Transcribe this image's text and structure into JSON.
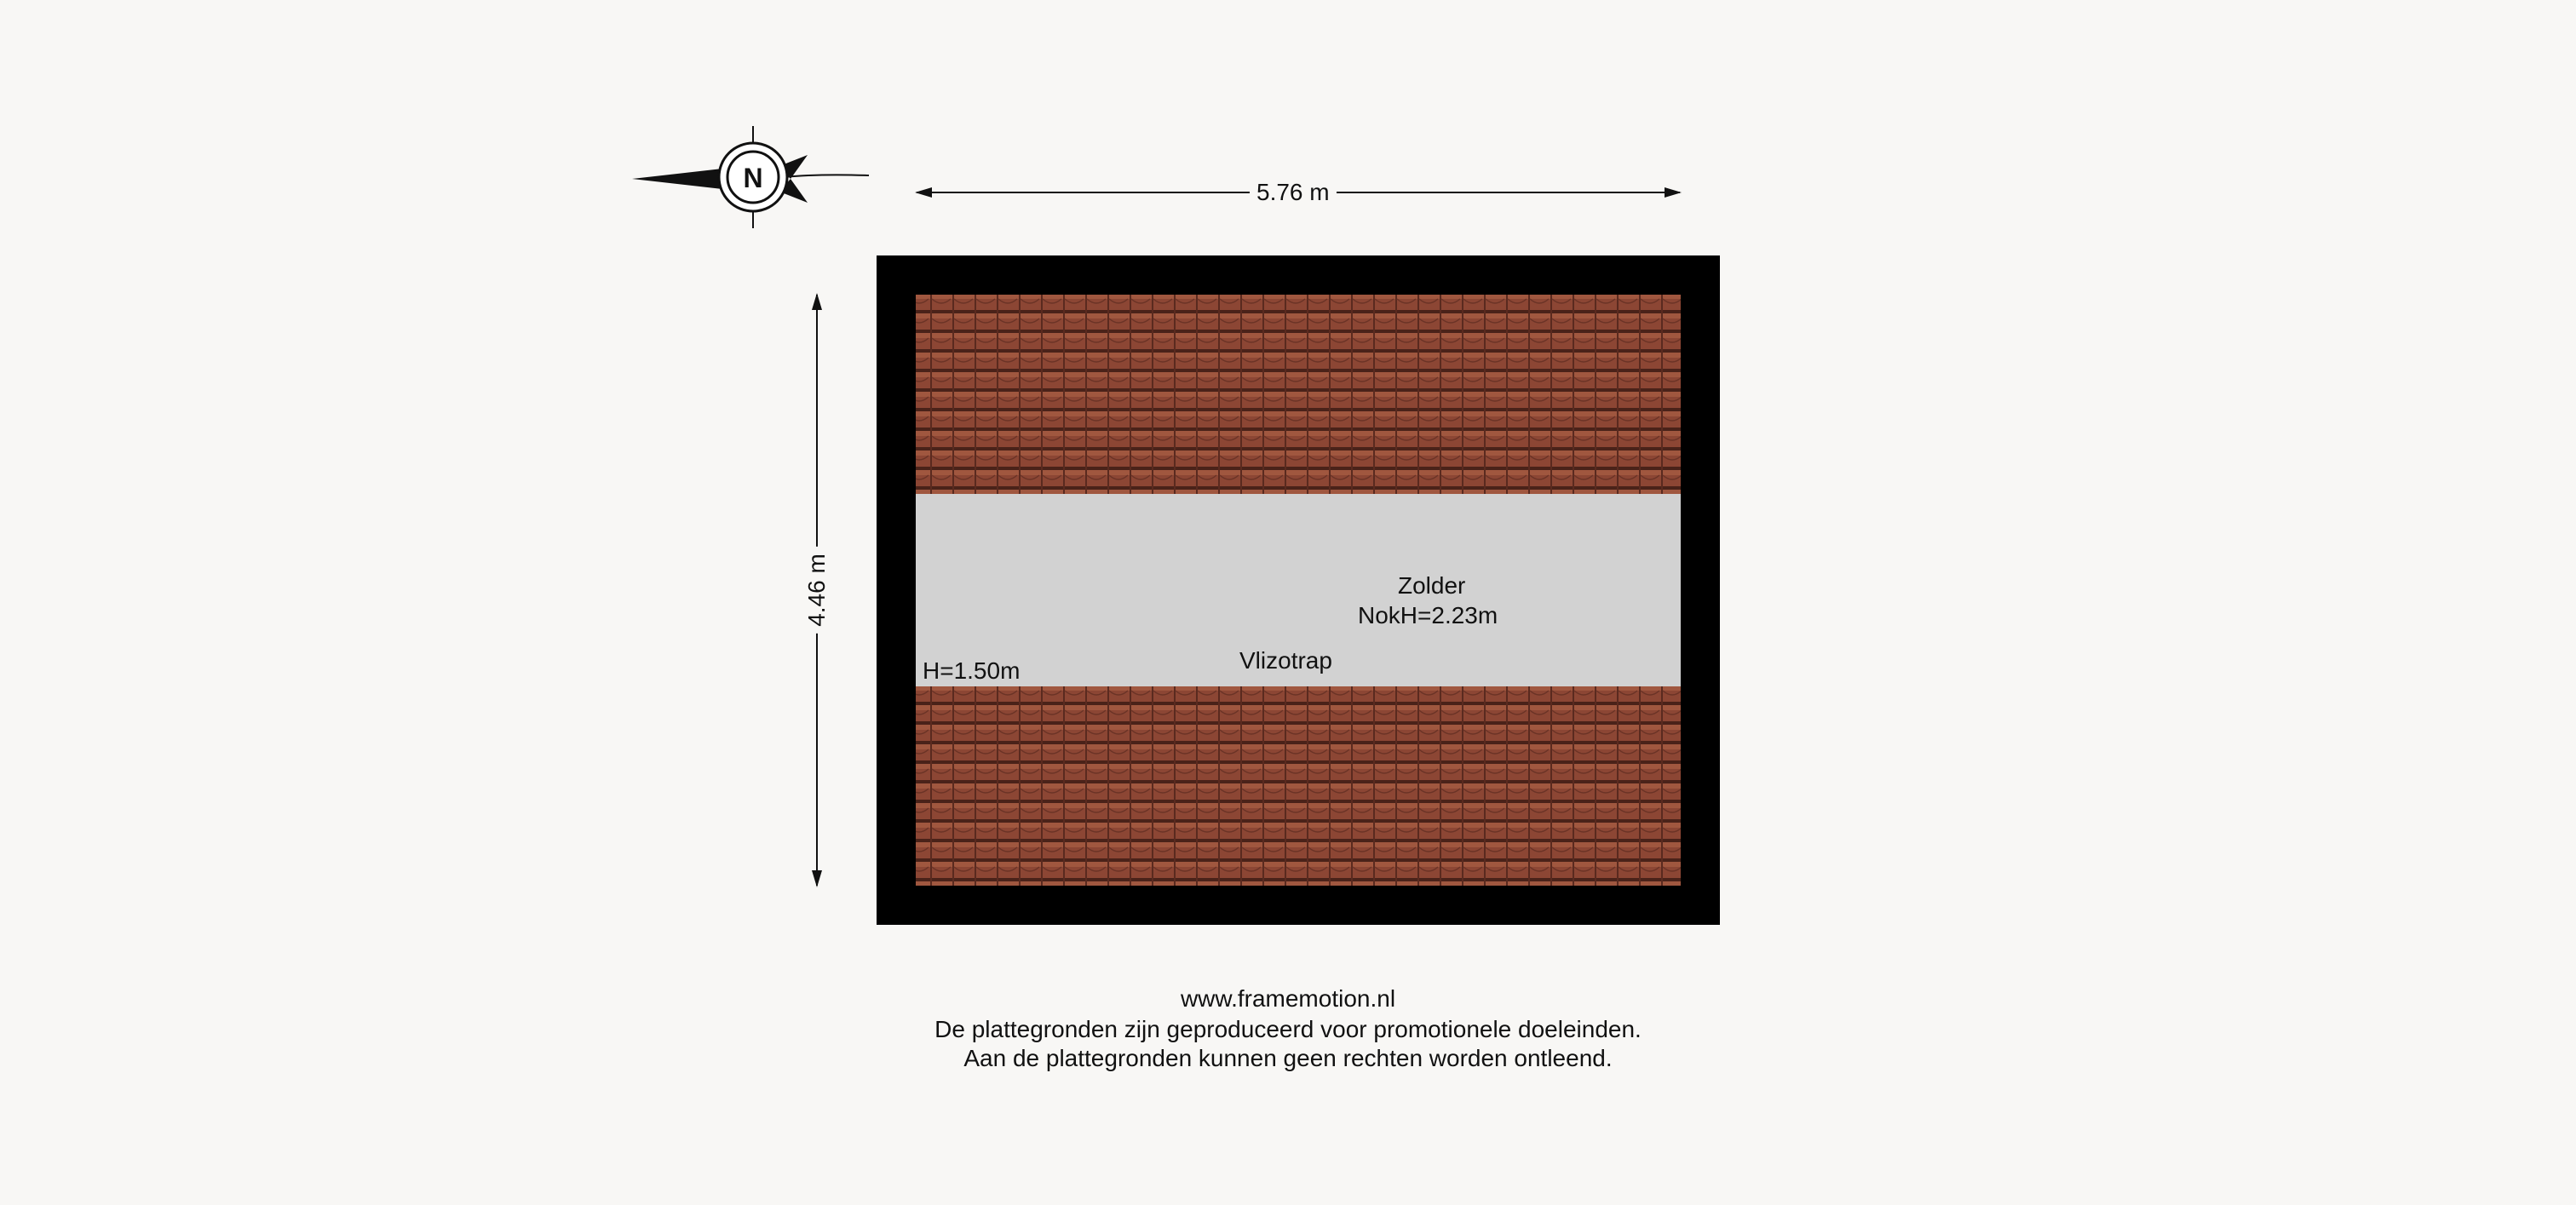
{
  "compass": {
    "label": "N"
  },
  "dimensions": {
    "width_label": "5.76 m",
    "depth_label": "4.46 m"
  },
  "room": {
    "name": "Zolder",
    "ridge_height": "NokH=2.23m",
    "stair": "Vlizotrap",
    "knee_height": "H=1.50m"
  },
  "colors": {
    "wall": "#000000",
    "floor": "#d2d2d2",
    "roof_tile": "#8c4634",
    "background": "#f8f7f5"
  },
  "footer": {
    "line1": "www.framemotion.nl",
    "line2": "De plattegronden zijn geproduceerd voor promotionele doeleinden.",
    "line3": "Aan de plattegronden kunnen geen rechten worden ontleend."
  }
}
